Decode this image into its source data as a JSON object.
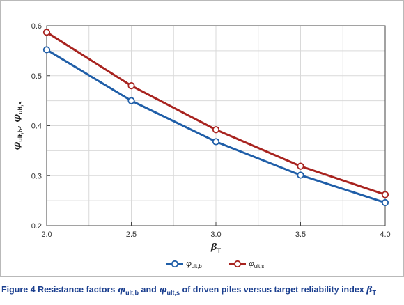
{
  "figure": {
    "caption_label": "Figure 4",
    "caption_text": {
      "part1": "Resistance factors ",
      "sym1": "φ",
      "sub1": "ult,b",
      "part2": " and ",
      "sym2": "φ",
      "sub2": "ult,s",
      "part3": " of driven piles versus target reliability index ",
      "sym3": "β",
      "sub3": "T"
    }
  },
  "chart_data": {
    "type": "line",
    "x": [
      2.0,
      2.5,
      3.0,
      3.5,
      4.0
    ],
    "x_tick_labels": [
      "2.0",
      "2.5",
      "3.0",
      "3.5",
      "4.0"
    ],
    "y_ticks": [
      0.2,
      0.3,
      0.4,
      0.5,
      0.6
    ],
    "y_tick_labels": [
      "0.2",
      "0.3",
      "0.4",
      "0.5",
      "0.6"
    ],
    "xlim": [
      2.0,
      4.0
    ],
    "ylim": [
      0.2,
      0.6
    ],
    "xlabel": {
      "symbol": "β",
      "sub": "T"
    },
    "ylabel": {
      "sym1": "φ",
      "sub1": "ult,b",
      "sep": ", ",
      "sym2": "φ",
      "sub2": "ult,s"
    },
    "grid": true,
    "legend_position": "bottom-center",
    "series": [
      {
        "name_symbol": "φ",
        "name_sub": "ult,b",
        "color": "#1f5ea8",
        "values": [
          0.552,
          0.45,
          0.368,
          0.301,
          0.246
        ]
      },
      {
        "name_symbol": "φ",
        "name_sub": "ult,s",
        "color": "#a8231f",
        "values": [
          0.587,
          0.48,
          0.392,
          0.319,
          0.262
        ]
      }
    ]
  }
}
